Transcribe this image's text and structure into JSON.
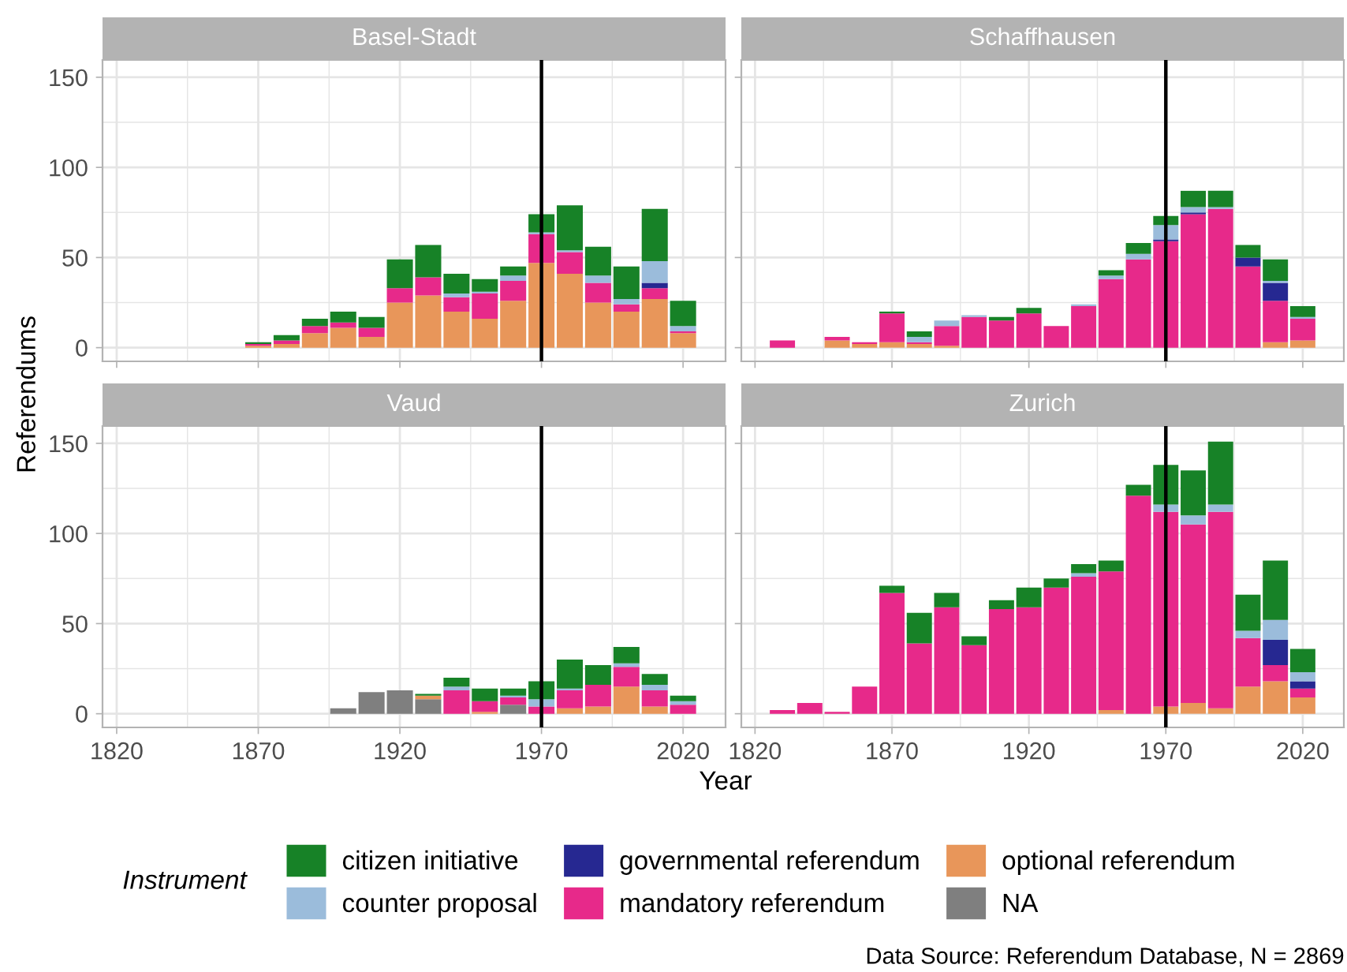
{
  "chart_data": [
    {
      "type": "bar",
      "title": "Basel-Stadt",
      "ylabel": "Referendums",
      "stacked": true,
      "tick_labels": "y",
      "grid": true,
      "legend": "bottom",
      "legend_title": "Instrument",
      "xlim": [
        1815,
        2035
      ],
      "ylim": [
        -7.6,
        159.6
      ],
      "xticks": [
        1820,
        1870,
        1920,
        1970,
        2020
      ],
      "yticks": [
        0,
        50,
        100,
        150
      ],
      "x": [
        1870,
        1880,
        1890,
        1900,
        1910,
        1920,
        1930,
        1940,
        1950,
        1960,
        1970,
        1980,
        1990,
        2000,
        2010,
        2020
      ],
      "ref_lines": [
        {
          "axis": "x",
          "value": 1970,
          "color": "#000000"
        }
      ],
      "series": [
        {
          "name": "NA",
          "color": "#7f7f7f",
          "values": [
            null,
            null,
            null,
            null,
            null,
            null,
            null,
            null,
            null,
            null,
            null,
            null,
            null,
            null,
            null,
            null
          ]
        },
        {
          "name": "optional referendum",
          "color": "#e8965a",
          "values": [
            1,
            2,
            8,
            11,
            6,
            25,
            29,
            20,
            16,
            26,
            47,
            41,
            25,
            20,
            27,
            8
          ]
        },
        {
          "name": "mandatory referendum",
          "color": "#e7298a",
          "values": [
            1,
            2,
            4,
            3,
            5,
            8,
            10,
            8,
            14,
            11,
            16,
            12,
            11,
            4,
            6,
            1
          ]
        },
        {
          "name": "governmental referendum",
          "color": "#262891",
          "values": [
            null,
            null,
            null,
            null,
            null,
            null,
            null,
            null,
            null,
            null,
            null,
            null,
            null,
            null,
            3,
            null
          ]
        },
        {
          "name": "counter proposal",
          "color": "#9bbcdb",
          "values": [
            null,
            null,
            null,
            null,
            null,
            null,
            null,
            2,
            1,
            3,
            1,
            1,
            4,
            3,
            12,
            3
          ]
        },
        {
          "name": "citizen initiative",
          "color": "#178227",
          "values": [
            1,
            3,
            4,
            6,
            6,
            16,
            18,
            11,
            7,
            5,
            10,
            25,
            16,
            18,
            29,
            14
          ]
        }
      ]
    },
    {
      "type": "bar",
      "title": "Schaffhausen",
      "stacked": true,
      "tick_labels": false,
      "grid": true,
      "xlim": [
        1815,
        2035
      ],
      "ylim": [
        -7.6,
        159.6
      ],
      "xticks": [
        1820,
        1870,
        1920,
        1970,
        2020
      ],
      "yticks": [
        0,
        50,
        100,
        150
      ],
      "x": [
        1830,
        1840,
        1850,
        1860,
        1870,
        1880,
        1890,
        1900,
        1910,
        1920,
        1930,
        1940,
        1950,
        1960,
        1970,
        1980,
        1990,
        2000,
        2010,
        2020
      ],
      "ref_lines": [
        {
          "axis": "x",
          "value": 1970,
          "color": "#000000"
        }
      ],
      "series": [
        {
          "color": "#e8965a",
          "values": [
            null,
            null,
            4,
            2,
            3,
            2,
            1,
            null,
            null,
            null,
            null,
            null,
            null,
            null,
            null,
            null,
            null,
            null,
            3,
            4
          ]
        },
        {
          "color": "#e7298a",
          "values": [
            4,
            null,
            2,
            1,
            16,
            1,
            11,
            17,
            15,
            19,
            12,
            23,
            38,
            49,
            59,
            74,
            77,
            45,
            23,
            12
          ]
        },
        {
          "color": "#262891",
          "values": [
            null,
            null,
            null,
            null,
            null,
            null,
            null,
            null,
            null,
            null,
            null,
            null,
            null,
            null,
            1,
            1,
            null,
            5,
            10,
            null
          ]
        },
        {
          "color": "#9bbcdb",
          "values": [
            null,
            null,
            null,
            null,
            null,
            3,
            3,
            1,
            null,
            null,
            null,
            1,
            2,
            3,
            8,
            3,
            1,
            null,
            1,
            1
          ]
        },
        {
          "color": "#178227",
          "values": [
            null,
            null,
            null,
            null,
            1,
            3,
            null,
            null,
            2,
            3,
            null,
            null,
            3,
            6,
            5,
            9,
            9,
            7,
            12,
            6
          ]
        }
      ]
    },
    {
      "type": "bar",
      "title": "Vaud",
      "xlabel": "Year",
      "stacked": true,
      "grid": true,
      "xlim": [
        1815,
        2035
      ],
      "ylim": [
        -7.6,
        159.6
      ],
      "xticks": [
        1820,
        1870,
        1920,
        1970,
        2020
      ],
      "yticks": [
        0,
        50,
        100,
        150
      ],
      "x": [
        1900,
        1910,
        1920,
        1930,
        1940,
        1950,
        1960,
        1970,
        1980,
        1990,
        2000,
        2010,
        2020
      ],
      "ref_lines": [
        {
          "axis": "x",
          "value": 1970,
          "color": "#000000"
        }
      ],
      "series": [
        {
          "color": "#7f7f7f",
          "values": [
            3,
            12,
            13,
            8,
            null,
            null,
            5,
            null,
            null,
            null,
            null,
            null,
            null
          ]
        },
        {
          "color": "#e8965a",
          "values": [
            null,
            null,
            null,
            2,
            null,
            1,
            null,
            null,
            3,
            4,
            15,
            4,
            null
          ]
        },
        {
          "color": "#e7298a",
          "values": [
            null,
            null,
            null,
            null,
            13,
            6,
            4,
            4,
            10,
            12,
            11,
            9,
            5
          ]
        },
        {
          "color": "#9bbcdb",
          "values": [
            null,
            null,
            null,
            null,
            2,
            null,
            1,
            4,
            1,
            null,
            2,
            3,
            2
          ]
        },
        {
          "color": "#178227",
          "values": [
            null,
            null,
            null,
            1,
            5,
            7,
            4,
            10,
            16,
            11,
            9,
            6,
            3
          ]
        }
      ]
    },
    {
      "type": "bar",
      "title": "Zurich",
      "stacked": true,
      "tick_labels": "x",
      "grid": true,
      "xlim": [
        1815,
        2035
      ],
      "ylim": [
        -7.6,
        159.6
      ],
      "xticks": [
        1820,
        1870,
        1920,
        1970,
        2020
      ],
      "yticks": [
        0,
        50,
        100,
        150
      ],
      "annotations": [
        "Data Source: Referendum Database, N = 2869"
      ],
      "x": [
        1830,
        1840,
        1850,
        1860,
        1870,
        1880,
        1890,
        1900,
        1910,
        1920,
        1930,
        1940,
        1950,
        1960,
        1970,
        1980,
        1990,
        2000,
        2010,
        2020
      ],
      "ref_lines": [
        {
          "axis": "x",
          "value": 1970,
          "color": "#000000"
        }
      ],
      "series": [
        {
          "color": "#e8965a",
          "values": [
            null,
            null,
            null,
            null,
            null,
            null,
            null,
            null,
            null,
            null,
            null,
            null,
            2,
            null,
            4,
            6,
            3,
            15,
            18,
            9
          ]
        },
        {
          "color": "#e7298a",
          "values": [
            2,
            6,
            1,
            15,
            67,
            39,
            59,
            38,
            58,
            59,
            70,
            76,
            77,
            121,
            108,
            99,
            109,
            27,
            9,
            5
          ]
        },
        {
          "color": "#262891",
          "values": [
            null,
            null,
            null,
            null,
            null,
            null,
            null,
            null,
            null,
            null,
            null,
            null,
            null,
            null,
            null,
            null,
            null,
            null,
            14,
            4
          ]
        },
        {
          "color": "#9bbcdb",
          "values": [
            null,
            null,
            null,
            null,
            null,
            null,
            null,
            null,
            null,
            null,
            null,
            2,
            null,
            null,
            4,
            5,
            4,
            4,
            11,
            5
          ]
        },
        {
          "color": "#178227",
          "values": [
            null,
            null,
            null,
            null,
            4,
            17,
            8,
            5,
            5,
            11,
            5,
            5,
            6,
            6,
            22,
            25,
            35,
            20,
            33,
            13
          ]
        }
      ]
    }
  ]
}
